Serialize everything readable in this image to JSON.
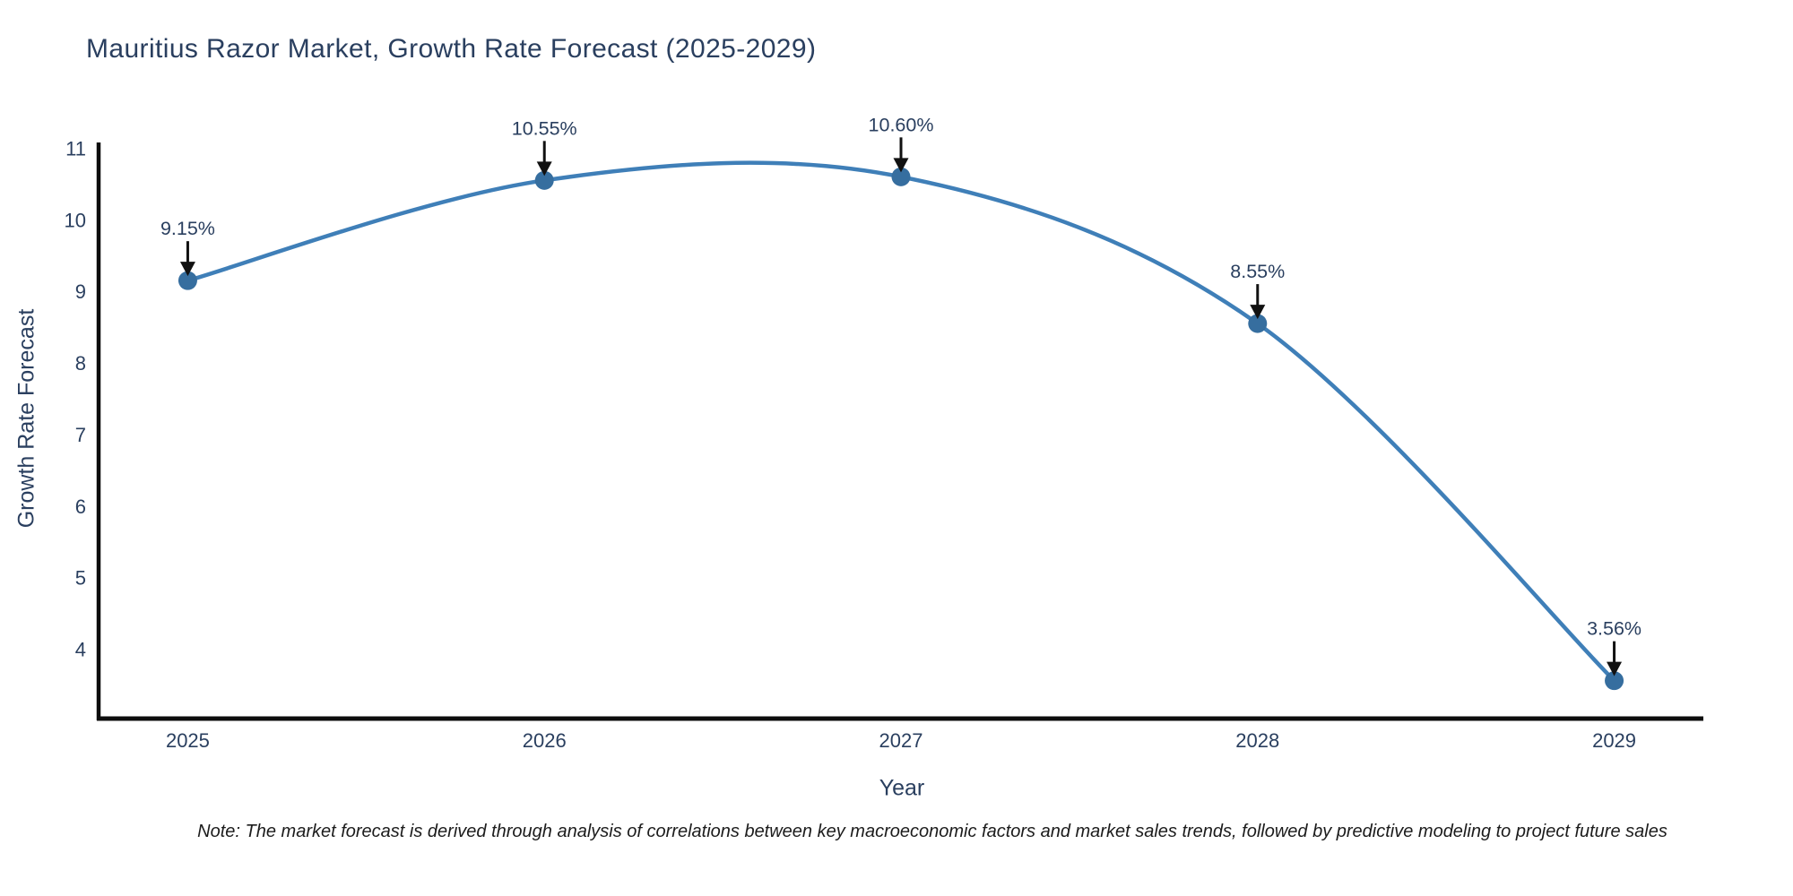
{
  "note": "Note: The market forecast is derived through analysis of correlations between key macroeconomic factors and market sales trends, followed by predictive modeling to project future sales",
  "chart_data": {
    "type": "line",
    "title": "Mauritius Razor Market, Growth Rate Forecast (2025-2029)",
    "xlabel": "Year",
    "ylabel": "Growth Rate Forecast",
    "x": [
      2025,
      2026,
      2027,
      2028,
      2029
    ],
    "values": [
      9.15,
      10.55,
      10.6,
      8.55,
      3.56
    ],
    "labels": [
      "9.15%",
      "10.55%",
      "10.60%",
      "8.55%",
      "3.56%"
    ],
    "yticks": [
      4,
      5,
      6,
      7,
      8,
      9,
      10,
      11
    ],
    "ylim": [
      3.03,
      11.08
    ],
    "xlim": [
      2024.75,
      2029.25
    ],
    "line_shape": "spline",
    "grid": false,
    "legend": false,
    "annotation_style": "arrow-down-to-point",
    "colors": {
      "line": "#3f7fb8",
      "marker": "#366e9f",
      "font": "#2a3f5f",
      "axis": "#0d0d0d",
      "arrow": "#111111",
      "note_text": "#1c1c1c",
      "background": "#ffffff"
    }
  }
}
